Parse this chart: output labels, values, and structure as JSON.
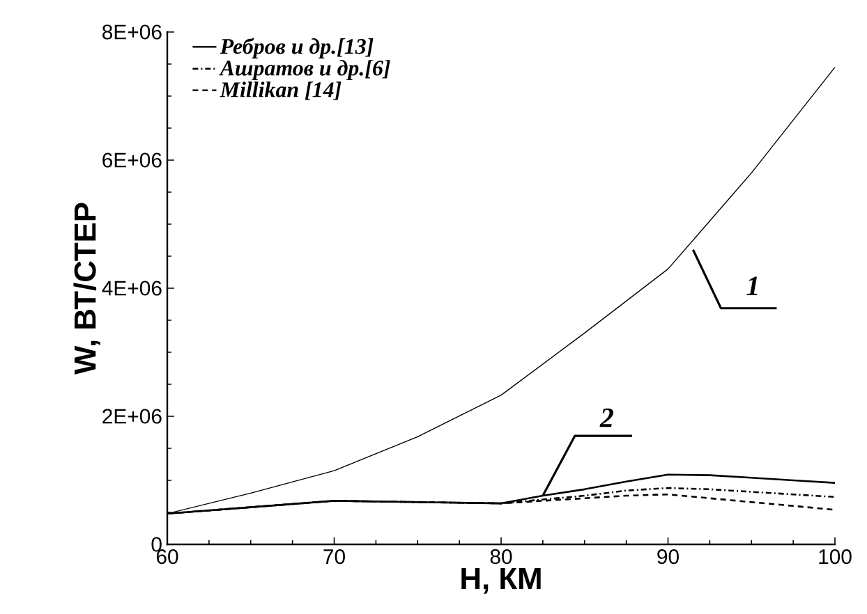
{
  "chart_data": {
    "type": "line",
    "xlabel": "H, КМ",
    "ylabel": "W, ВТ/СТЕР",
    "xlim": [
      60,
      100
    ],
    "xticks": [
      60,
      70,
      80,
      90,
      100
    ],
    "ylim": [
      0,
      8000000
    ],
    "yticks": [
      0,
      {
        "value": 2000000,
        "label": "2E+06"
      },
      {
        "value": 4000000,
        "label": "4E+06"
      },
      {
        "value": 6000000,
        "label": "6E+06"
      },
      {
        "value": 8000000,
        "label": "8E+06"
      }
    ],
    "x": [
      60,
      65,
      70,
      75,
      80,
      82.5,
      85,
      87.5,
      90,
      92.5,
      95,
      97.5,
      100
    ],
    "series": [
      {
        "name": "Ребров и др.[13]",
        "color": "#000000",
        "line_style": "solid",
        "values": [
          480000,
          580000,
          680000,
          660000,
          640000,
          760000,
          860000,
          980000,
          1090000,
          1080000,
          1040000,
          1000000,
          960000
        ]
      },
      {
        "name": "Ашратов и др.[6]",
        "color": "#000000",
        "line_style": "dashdot",
        "values": [
          480000,
          580000,
          680000,
          660000,
          640000,
          700000,
          760000,
          840000,
          880000,
          860000,
          820000,
          780000,
          740000
        ]
      },
      {
        "name": "Millikan [14]",
        "color": "#000000",
        "line_style": "dashed",
        "values": [
          480000,
          580000,
          680000,
          660000,
          640000,
          680000,
          720000,
          760000,
          780000,
          720000,
          660000,
          600000,
          540000
        ]
      },
      {
        "color": "#000000",
        "line_style": "solid",
        "x": [
          60,
          65,
          70,
          75,
          80,
          85,
          90,
          95,
          100
        ],
        "values": [
          480000,
          800000,
          1150000,
          1680000,
          2330000,
          3300000,
          4300000,
          5800000,
          7450000
        ]
      }
    ],
    "legend": "top left",
    "annotations": [
      {
        "text": "1",
        "x": 91.5,
        "y": 4600000
      },
      {
        "text": "2",
        "x": 82.5,
        "y": 760000
      }
    ]
  }
}
